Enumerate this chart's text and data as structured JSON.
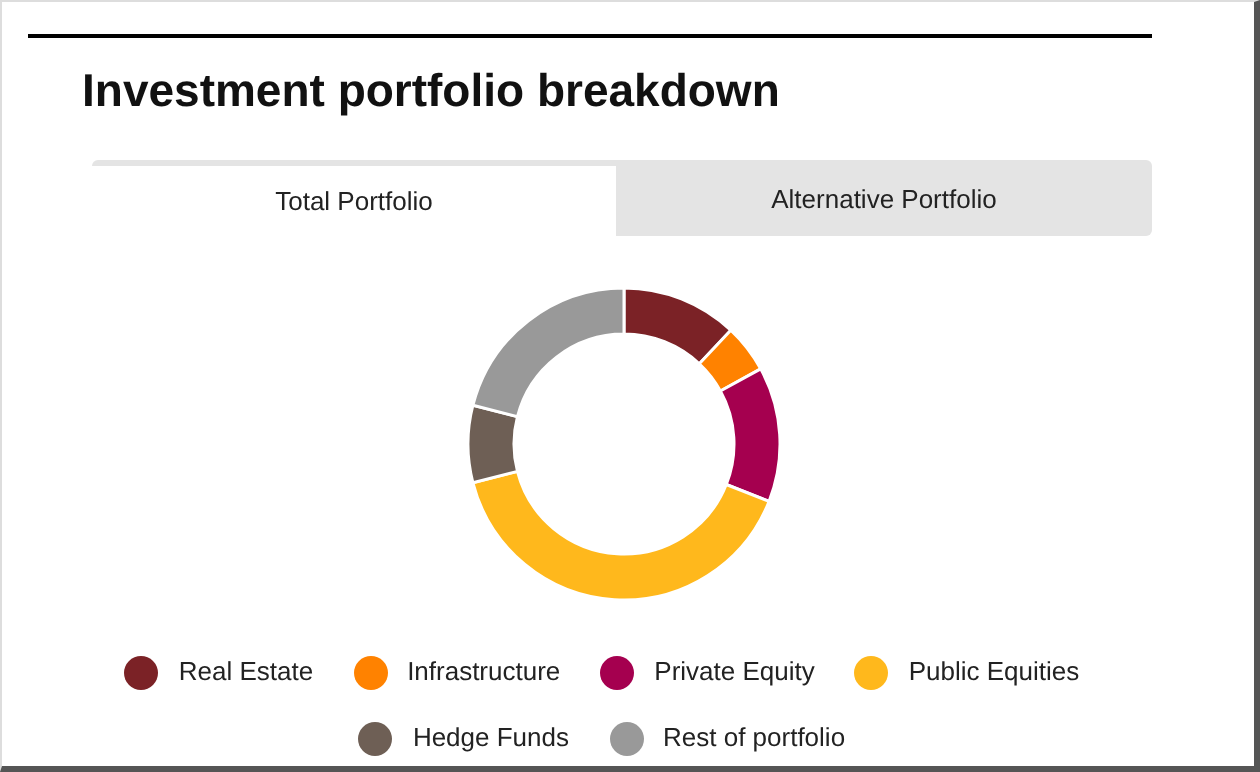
{
  "chart_data": {
    "type": "donut",
    "title": "Investment portfolio breakdown",
    "annotations": [
      "Total Portfolio",
      "Alternative Portfolio"
    ],
    "categories": [
      "Real Estate",
      "Infrastructure",
      "Private Equity",
      "Public Equities",
      "Hedge Funds",
      "Rest of portfolio"
    ],
    "values": [
      12,
      5,
      14,
      40,
      8,
      21
    ],
    "colors": [
      "#7b2226",
      "#ff8200",
      "#a5004f",
      "#ffb81c",
      "#6e5f55",
      "#999999"
    ],
    "legend": "bottom"
  }
}
